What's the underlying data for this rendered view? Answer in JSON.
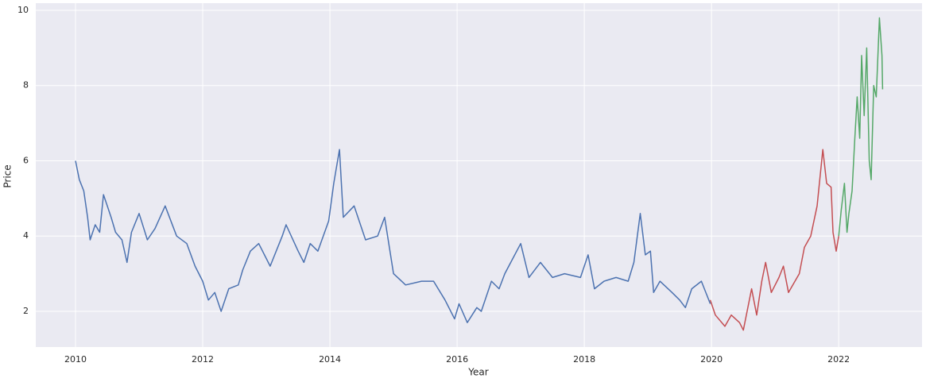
{
  "chart_data": {
    "type": "line",
    "xlabel": "Year",
    "ylabel": "Price",
    "xlim": [
      2009.375,
      2023.31
    ],
    "ylim": [
      1.05,
      10.19
    ],
    "xticks": [
      2010,
      2012,
      2014,
      2016,
      2018,
      2020,
      2022
    ],
    "yticks": [
      2,
      4,
      6,
      8,
      10
    ],
    "grid": true,
    "background": "#eaeaf2",
    "series": [
      {
        "color": "#4c72b0",
        "x": [
          2010.0,
          2010.06,
          2010.13,
          2010.19,
          2010.23,
          2010.31,
          2010.38,
          2010.44,
          2010.56,
          2010.63,
          2010.73,
          2010.81,
          2010.88,
          2011.0,
          2011.13,
          2011.25,
          2011.41,
          2011.59,
          2011.75,
          2011.88,
          2012.0,
          2012.09,
          2012.19,
          2012.29,
          2012.41,
          2012.56,
          2012.63,
          2012.75,
          2012.88,
          2013.06,
          2013.25,
          2013.31,
          2013.5,
          2013.59,
          2013.69,
          2013.81,
          2013.98,
          2014.06,
          2014.15,
          2014.21,
          2014.38,
          2014.56,
          2014.75,
          2014.86,
          2015.0,
          2015.19,
          2015.44,
          2015.63,
          2015.81,
          2015.96,
          2016.03,
          2016.16,
          2016.31,
          2016.38,
          2016.54,
          2016.66,
          2016.75,
          2017.0,
          2017.13,
          2017.31,
          2017.5,
          2017.69,
          2017.94,
          2018.06,
          2018.16,
          2018.31,
          2018.5,
          2018.69,
          2018.78,
          2018.88,
          2018.96,
          2019.04,
          2019.09,
          2019.19,
          2019.38,
          2019.5,
          2019.59,
          2019.69,
          2019.84,
          2019.98
        ],
        "values": [
          6.0,
          5.5,
          5.2,
          4.5,
          3.9,
          4.3,
          4.1,
          5.1,
          4.5,
          4.1,
          3.9,
          3.3,
          4.1,
          4.6,
          3.9,
          4.2,
          4.8,
          4.0,
          3.8,
          3.2,
          2.8,
          2.3,
          2.5,
          2.0,
          2.6,
          2.7,
          3.1,
          3.6,
          3.8,
          3.2,
          4.0,
          4.3,
          3.6,
          3.3,
          3.8,
          3.6,
          4.4,
          5.4,
          6.3,
          4.5,
          4.8,
          3.9,
          4.0,
          4.5,
          3.0,
          2.7,
          2.8,
          2.8,
          2.3,
          1.8,
          2.2,
          1.7,
          2.1,
          2.0,
          2.8,
          2.6,
          3.0,
          3.8,
          2.9,
          3.3,
          2.9,
          3.0,
          2.9,
          3.5,
          2.6,
          2.8,
          2.9,
          2.8,
          3.3,
          4.6,
          3.5,
          3.6,
          2.5,
          2.8,
          2.5,
          2.3,
          2.1,
          2.6,
          2.8,
          2.2
        ]
      },
      {
        "color": "#c44e52",
        "x": [
          2019.98,
          2020.06,
          2020.21,
          2020.31,
          2020.44,
          2020.5,
          2020.63,
          2020.71,
          2020.79,
          2020.85,
          2020.94,
          2021.06,
          2021.13,
          2021.21,
          2021.38,
          2021.46,
          2021.56,
          2021.66,
          2021.75,
          2021.81,
          2021.88,
          2021.91,
          2021.96,
          2022.0
        ],
        "values": [
          2.3,
          1.9,
          1.6,
          1.9,
          1.7,
          1.5,
          2.6,
          1.9,
          2.8,
          3.3,
          2.5,
          2.9,
          3.2,
          2.5,
          3.0,
          3.7,
          4.0,
          4.8,
          6.3,
          5.4,
          5.3,
          4.1,
          3.6,
          4.0
        ]
      },
      {
        "color": "#55a868",
        "x": [
          2022.0,
          2022.04,
          2022.09,
          2022.13,
          2022.16,
          2022.21,
          2022.25,
          2022.29,
          2022.33,
          2022.36,
          2022.4,
          2022.44,
          2022.48,
          2022.51,
          2022.55,
          2022.59,
          2022.64,
          2022.68,
          2022.69
        ],
        "values": [
          4.0,
          4.7,
          5.4,
          4.1,
          4.6,
          5.2,
          6.5,
          7.7,
          6.6,
          8.8,
          7.2,
          9.0,
          6.0,
          5.5,
          8.0,
          7.7,
          9.8,
          8.8,
          7.9
        ]
      }
    ]
  }
}
